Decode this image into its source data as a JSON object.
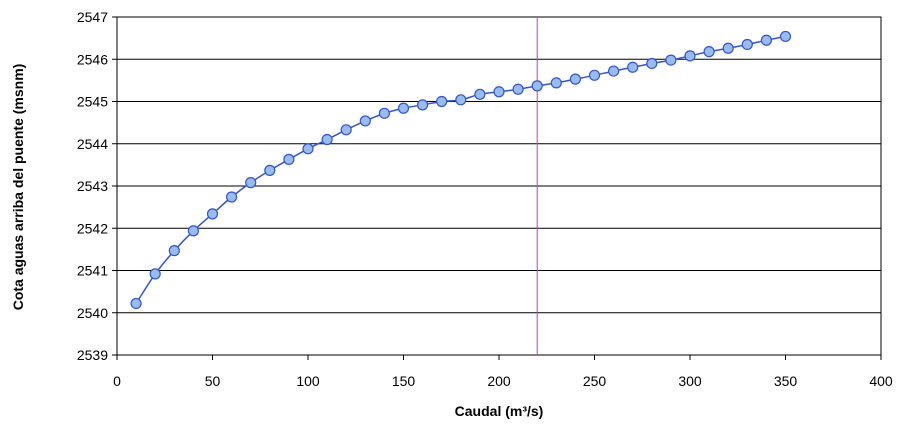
{
  "chart_data": {
    "type": "scatter",
    "title": "",
    "xlabel": "Caudal (m³/s)",
    "ylabel": "Cota aguas arriba del puente (msnm)",
    "xlim": [
      0,
      400
    ],
    "ylim": [
      2539,
      2547
    ],
    "x_ticks": [
      "0",
      "50",
      "100",
      "150",
      "200",
      "250",
      "300",
      "350",
      "400"
    ],
    "y_ticks": [
      "2539",
      "2540",
      "2541",
      "2542",
      "2543",
      "2544",
      "2545",
      "2546",
      "2547"
    ],
    "grid": "horizontal",
    "legend": "none",
    "series": [
      {
        "x": [
          10,
          20,
          30,
          40,
          50,
          60,
          70,
          80,
          90,
          100,
          110,
          120,
          130,
          140,
          150,
          160,
          170,
          180,
          190,
          200,
          210,
          220,
          230,
          240,
          250,
          260,
          270,
          280,
          290,
          300,
          310,
          320,
          330,
          340,
          350
        ],
        "y": [
          2540.22,
          2540.92,
          2541.47,
          2541.94,
          2542.34,
          2542.74,
          2543.08,
          2543.37,
          2543.63,
          2543.88,
          2544.1,
          2544.33,
          2544.54,
          2544.72,
          2544.84,
          2544.92,
          2545.0,
          2545.04,
          2545.17,
          2545.23,
          2545.29,
          2545.37,
          2545.44,
          2545.53,
          2545.62,
          2545.72,
          2545.81,
          2545.9,
          2545.98,
          2546.08,
          2546.18,
          2546.26,
          2546.35,
          2546.45,
          2546.54
        ]
      }
    ],
    "reference_line": {
      "x": 220
    },
    "colors": {
      "line": "#3355cc",
      "marker_fill": "#99bbee",
      "marker_stroke": "#3355cc",
      "reference_line": "#cc33cc",
      "grid": "#000000"
    }
  }
}
